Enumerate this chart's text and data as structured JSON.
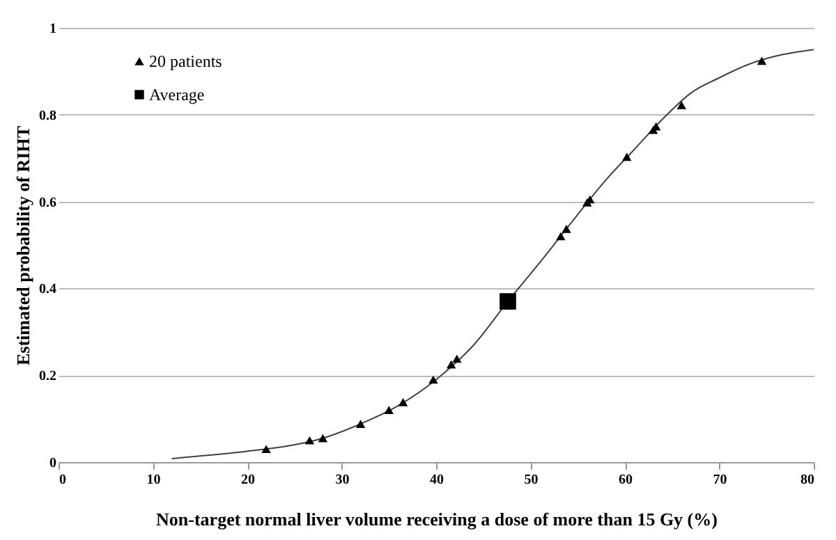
{
  "chart_data": {
    "type": "scatter",
    "xlabel": "Non-target normal liver volume receiving a dose of more than 15 Gy (%)",
    "ylabel": "Estimated probability of RIHT",
    "xlim": [
      0,
      80
    ],
    "xticks": [
      0,
      10,
      20,
      30,
      40,
      50,
      60,
      70,
      80
    ],
    "ylim": [
      0,
      1
    ],
    "yticks": [
      0,
      0.2,
      0.4,
      0.6,
      0.8,
      1
    ],
    "grid": "y",
    "legend": "top left",
    "series": [
      {
        "type": "line",
        "color": "#404040",
        "marker": "none",
        "x": [
          12,
          16,
          20,
          24,
          28,
          32,
          36,
          40,
          44,
          47.6,
          51,
          55,
          58,
          61,
          64,
          67,
          70,
          73,
          76,
          80
        ],
        "values": [
          0.008,
          0.016,
          0.025,
          0.036,
          0.055,
          0.088,
          0.13,
          0.19,
          0.27,
          0.37,
          0.46,
          0.57,
          0.65,
          0.72,
          0.79,
          0.85,
          0.885,
          0.915,
          0.935,
          0.95
        ]
      },
      {
        "name": "20 patients",
        "marker": "triangle",
        "color": "#000000",
        "x": [
          22,
          26.6,
          28,
          32,
          35,
          36.5,
          39.7,
          41.6,
          42.2,
          53.2,
          53.8,
          56,
          56.3,
          60.2,
          63,
          63.3,
          66,
          74.5
        ],
        "values": [
          0.03,
          0.05,
          0.055,
          0.088,
          0.12,
          0.138,
          0.19,
          0.225,
          0.238,
          0.52,
          0.537,
          0.598,
          0.605,
          0.703,
          0.765,
          0.773,
          0.822,
          0.924
        ]
      },
      {
        "name": "Average",
        "marker": "square",
        "color": "#000000",
        "x": [
          47.6
        ],
        "values": [
          0.37
        ]
      }
    ]
  }
}
